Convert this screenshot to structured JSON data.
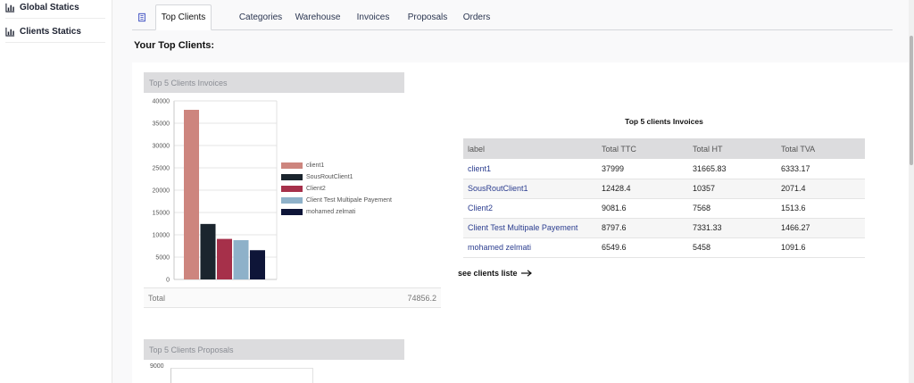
{
  "sidebar": {
    "items": [
      {
        "label": "Global Statics",
        "icon": "bar-chart-icon"
      },
      {
        "label": "Clients Statics",
        "icon": "bar-chart-icon"
      }
    ]
  },
  "tabs": {
    "icon": "bookmark-icon",
    "items": [
      {
        "label": "Top Clients",
        "active": true
      },
      {
        "label": "Categories"
      },
      {
        "label": "Warehouse"
      },
      {
        "label": "Invoices"
      },
      {
        "label": "Proposals"
      },
      {
        "label": "Orders"
      }
    ]
  },
  "page_title": "Your Top Clients:",
  "invoices_panel": {
    "header": "Top 5 Clients Invoices",
    "total_label": "Total",
    "total_value": "74856.2"
  },
  "proposals_panel": {
    "header": "Top 5 Clients Proposals",
    "axis_top": "9000"
  },
  "table": {
    "title": "Top 5 clients Invoices",
    "columns": [
      "label",
      "Total TTC",
      "Total HT",
      "Total TVA"
    ],
    "rows": [
      [
        "client1",
        "37999",
        "31665.83",
        "6333.17"
      ],
      [
        "SousRoutClient1",
        "12428.4",
        "10357",
        "2071.4"
      ],
      [
        "Client2",
        "9081.6",
        "7568",
        "1513.6"
      ],
      [
        "Client Test Multipale Payement",
        "8797.6",
        "7331.33",
        "1466.27"
      ],
      [
        "mohamed zelmati",
        "6549.6",
        "5458",
        "1091.6"
      ]
    ]
  },
  "see_link": "see clients liste",
  "colors": {
    "accent": "#2b3d8f",
    "bar_client1": "#cd857e",
    "bar_sousroutclient1": "#1b252e",
    "bar_client2": "#a6304a",
    "bar_client_test": "#8eb1c9",
    "bar_mohamed": "#0e1538"
  },
  "chart_data": {
    "type": "bar",
    "categories": [
      "client1",
      "SousRoutClient1",
      "Client2",
      "Client Test Multipale Payement",
      "mohamed zelmati"
    ],
    "values": [
      37999,
      12428.4,
      9081.6,
      8797.6,
      6549.6
    ],
    "yticks": [
      "0",
      "5000",
      "10000",
      "15000",
      "20000",
      "25000",
      "30000",
      "35000",
      "40000"
    ],
    "ylim": [
      0,
      40000
    ],
    "title": "Top 5 Clients Invoices",
    "legend": "right",
    "grid": true
  }
}
